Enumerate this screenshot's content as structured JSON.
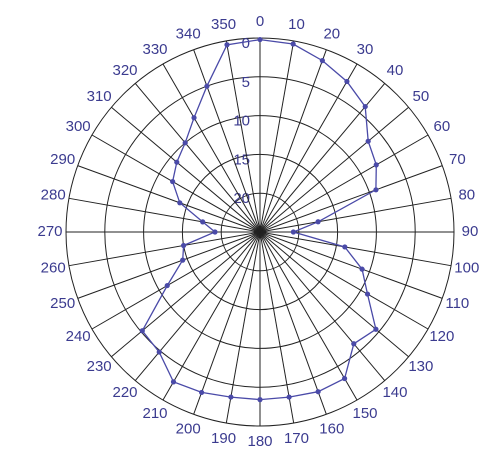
{
  "chart_data": {
    "type": "polar",
    "x": [
      0,
      10,
      20,
      30,
      40,
      50,
      60,
      70,
      80,
      90,
      100,
      110,
      120,
      130,
      140,
      150,
      160,
      170,
      180,
      190,
      200,
      210,
      220,
      230,
      240,
      250,
      260,
      270,
      280,
      290,
      300,
      310,
      320,
      330,
      340,
      350
    ],
    "values": [
      0.2,
      0.4,
      1.5,
      2.6,
      3.9,
      6.8,
      7.7,
      9.1,
      17.4,
      20.7,
      13.9,
      11,
      9,
      5.5,
      6.2,
      3.2,
      3.1,
      3.4,
      3.4,
      3.4,
      3,
      2.7,
      4.8,
      5.2,
      11.2,
      14.4,
      15,
      19.2,
      17.5,
      14,
      12,
      11,
      10,
      8,
      5,
      0.5
    ],
    "color": "#4a4aa8",
    "rlim": [
      0,
      25
    ],
    "rticks": [
      0,
      5,
      10,
      15,
      20
    ],
    "r_reversed": true,
    "grid": true
  }
}
